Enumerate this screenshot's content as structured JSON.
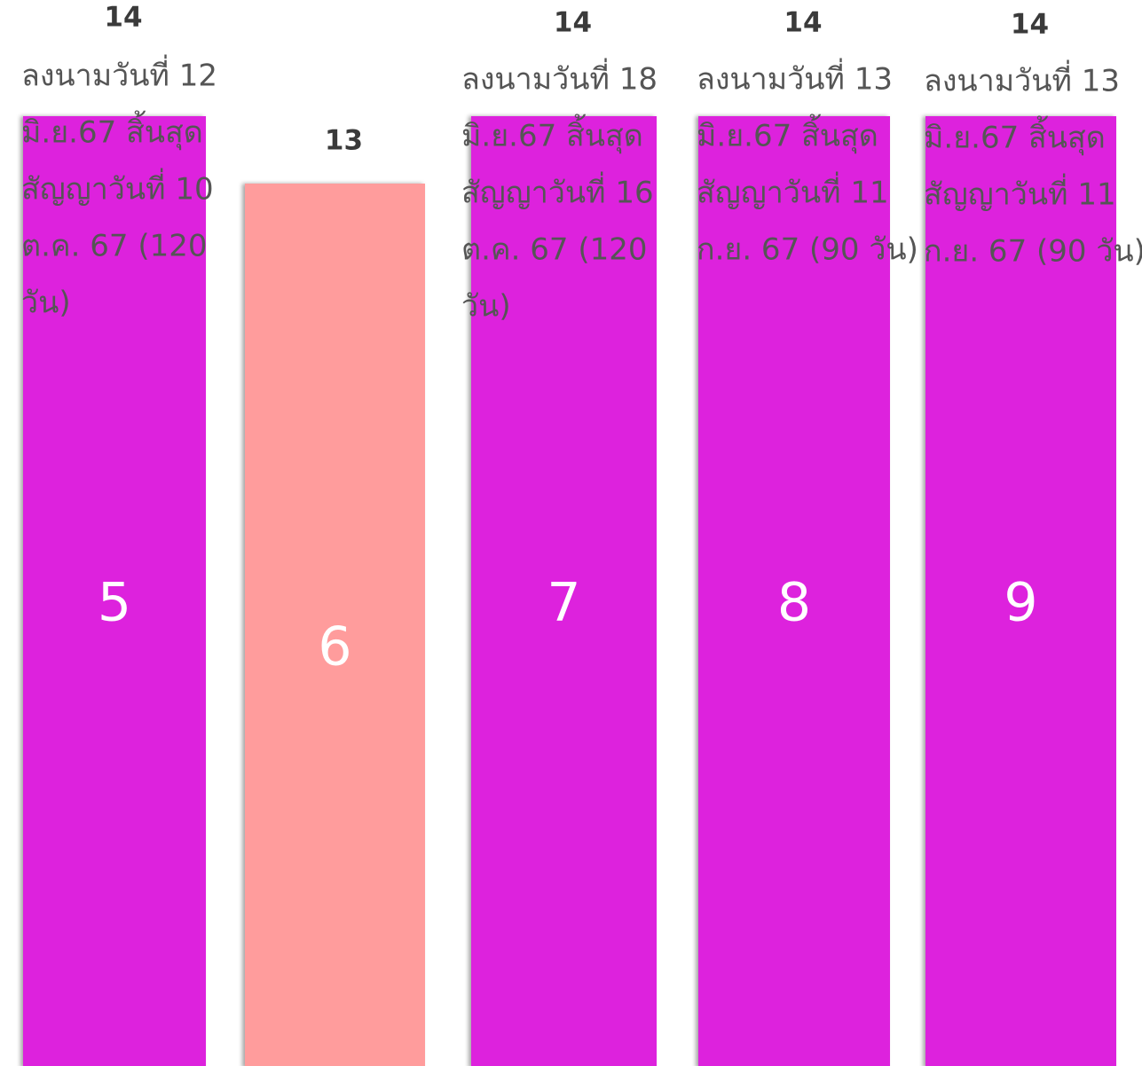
{
  "chart_data": {
    "type": "bar",
    "categories": [
      "5",
      "6",
      "7",
      "8",
      "9"
    ],
    "values": [
      14,
      13,
      14,
      14,
      14
    ],
    "ylim": [
      0,
      14
    ],
    "axes_visible": false,
    "grid": false,
    "legend": "none",
    "bars": [
      {
        "label": "5",
        "value": 14,
        "value_label": "14",
        "color": "#dd22dd",
        "note_lines": [
          "ลงนามวันที่ 12",
          "มิ.ย.67 สิ้นสุด",
          "สัญญาวันที่ 10",
          "ต.ค. 67 (120",
          "วัน)"
        ]
      },
      {
        "label": "6",
        "value": 13,
        "value_label": "13",
        "color": "#ff9c9c",
        "note_lines": []
      },
      {
        "label": "7",
        "value": 14,
        "value_label": "14",
        "color": "#dd22dd",
        "note_lines": [
          "ลงนามวันที่ 18",
          "มิ.ย.67 สิ้นสุด",
          "สัญญาวันที่ 16",
          "ต.ค. 67 (120",
          "วัน)"
        ]
      },
      {
        "label": "8",
        "value": 14,
        "value_label": "14",
        "color": "#dd22dd",
        "note_lines": [
          "ลงนามวันที่ 13",
          "มิ.ย.67 สิ้นสุด",
          "สัญญาวันที่ 11",
          "ก.ย. 67 (90 วัน)"
        ]
      },
      {
        "label": "9",
        "value": 14,
        "value_label": "14",
        "color": "#dd22dd",
        "note_lines": [
          "ลงนามวันที่ 13",
          "มิ.ย.67 สิ้นสุด",
          "สัญญาวันที่ 11",
          "ก.ย. 67 (90 วัน)"
        ]
      }
    ]
  }
}
